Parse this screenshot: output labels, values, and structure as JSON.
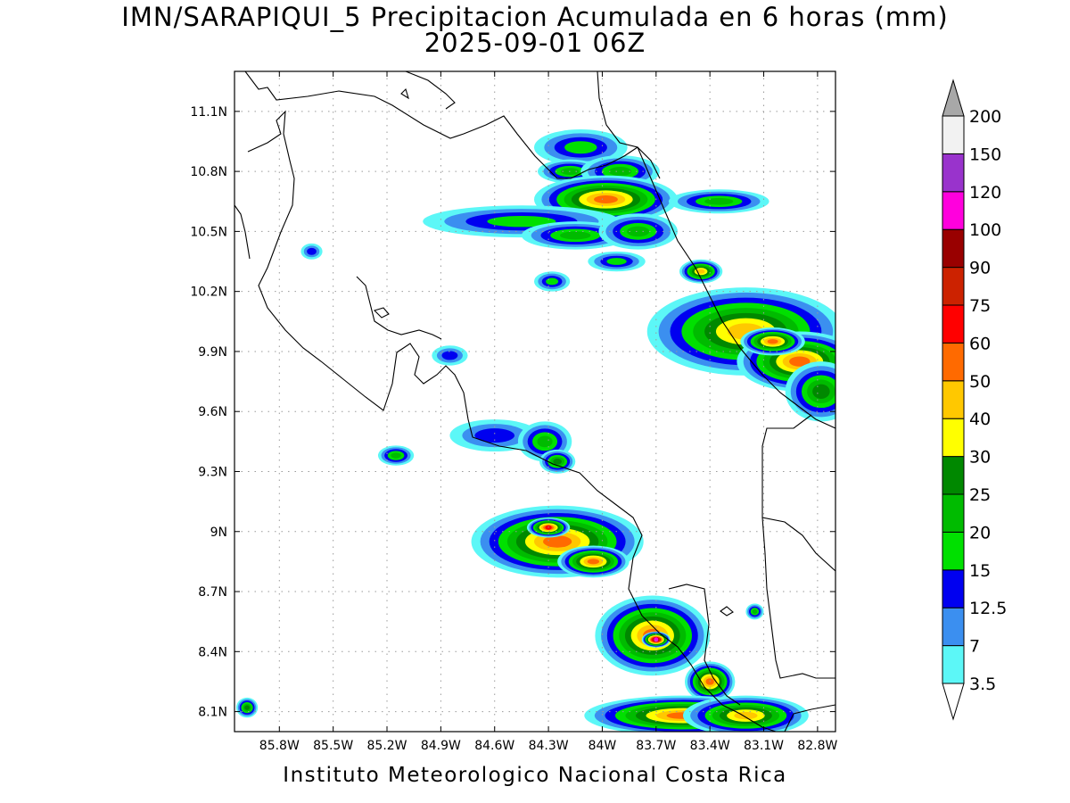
{
  "title": {
    "line1": "IMN/SARAPIQUI_5 Precipitacion Acumulada en 6 horas (mm)",
    "line2": "2025-09-01 06Z"
  },
  "footer": "Instituto Meteorologico Nacional Costa Rica",
  "map": {
    "lon_range": [
      -86.05,
      -82.7
    ],
    "lat_range": [
      8.0,
      11.3
    ],
    "lat_labels": [
      {
        "value": 11.1,
        "text": "11.1N"
      },
      {
        "value": 10.8,
        "text": "10.8N"
      },
      {
        "value": 10.5,
        "text": "10.5N"
      },
      {
        "value": 10.2,
        "text": "10.2N"
      },
      {
        "value": 9.9,
        "text": "9.9N"
      },
      {
        "value": 9.6,
        "text": "9.6N"
      },
      {
        "value": 9.3,
        "text": "9.3N"
      },
      {
        "value": 9.0,
        "text": "9N"
      },
      {
        "value": 8.7,
        "text": "8.7N"
      },
      {
        "value": 8.4,
        "text": "8.4N"
      },
      {
        "value": 8.1,
        "text": "8.1N"
      }
    ],
    "lon_labels": [
      {
        "value": -85.8,
        "text": "85.8W"
      },
      {
        "value": -85.5,
        "text": "85.5W"
      },
      {
        "value": -85.2,
        "text": "85.2W"
      },
      {
        "value": -84.9,
        "text": "84.9W"
      },
      {
        "value": -84.6,
        "text": "84.6W"
      },
      {
        "value": -84.3,
        "text": "84.3W"
      },
      {
        "value": -84.0,
        "text": "84W"
      },
      {
        "value": -83.7,
        "text": "83.7W"
      },
      {
        "value": -83.4,
        "text": "83.4W"
      },
      {
        "value": -83.1,
        "text": "83.1W"
      },
      {
        "value": -82.8,
        "text": "82.8W"
      }
    ],
    "gridlines": true
  },
  "colorbar": {
    "labels": [
      "3.5",
      "7",
      "12.5",
      "15",
      "20",
      "25",
      "30",
      "40",
      "50",
      "60",
      "75",
      "90",
      "100",
      "120",
      "150",
      "200"
    ],
    "colors": [
      "#5cf7f7",
      "#3b8ff0",
      "#0000f0",
      "#00e000",
      "#00bb00",
      "#008800",
      "#ffff00",
      "#ffc800",
      "#ff6a00",
      "#ff0000",
      "#cc2200",
      "#990000",
      "#ff00dd",
      "#9933cc",
      "#f2f2f2",
      "#a8a8a8"
    ]
  },
  "precip_cells": [
    {
      "lon": -84.12,
      "lat": 10.92,
      "rx": 0.26,
      "ry": 0.09,
      "level": 3
    },
    {
      "lon": -84.18,
      "lat": 10.8,
      "rx": 0.18,
      "ry": 0.06,
      "level": 4
    },
    {
      "lon": -83.9,
      "lat": 10.8,
      "rx": 0.22,
      "ry": 0.08,
      "level": 4
    },
    {
      "lon": -83.98,
      "lat": 10.66,
      "rx": 0.4,
      "ry": 0.12,
      "level": 8
    },
    {
      "lon": -84.45,
      "lat": 10.55,
      "rx": 0.55,
      "ry": 0.08,
      "level": 3
    },
    {
      "lon": -84.15,
      "lat": 10.48,
      "rx": 0.3,
      "ry": 0.07,
      "level": 4
    },
    {
      "lon": -83.8,
      "lat": 10.5,
      "rx": 0.22,
      "ry": 0.09,
      "level": 4
    },
    {
      "lon": -83.92,
      "lat": 10.35,
      "rx": 0.16,
      "ry": 0.05,
      "level": 3
    },
    {
      "lon": -83.35,
      "lat": 10.65,
      "rx": 0.28,
      "ry": 0.06,
      "level": 4
    },
    {
      "lon": -84.28,
      "lat": 10.25,
      "rx": 0.1,
      "ry": 0.05,
      "level": 3
    },
    {
      "lon": -85.62,
      "lat": 10.4,
      "rx": 0.06,
      "ry": 0.04,
      "level": 2
    },
    {
      "lon": -83.45,
      "lat": 10.3,
      "rx": 0.12,
      "ry": 0.06,
      "level": 7
    },
    {
      "lon": -83.2,
      "lat": 10.0,
      "rx": 0.55,
      "ry": 0.22,
      "level": 7
    },
    {
      "lon": -82.9,
      "lat": 9.85,
      "rx": 0.35,
      "ry": 0.15,
      "level": 8
    },
    {
      "lon": -83.05,
      "lat": 9.95,
      "rx": 0.18,
      "ry": 0.07,
      "level": 8
    },
    {
      "lon": -82.78,
      "lat": 9.7,
      "rx": 0.2,
      "ry": 0.15,
      "level": 5
    },
    {
      "lon": -84.85,
      "lat": 9.88,
      "rx": 0.1,
      "ry": 0.05,
      "level": 2
    },
    {
      "lon": -84.6,
      "lat": 9.48,
      "rx": 0.25,
      "ry": 0.08,
      "level": 2
    },
    {
      "lon": -84.32,
      "lat": 9.45,
      "rx": 0.15,
      "ry": 0.1,
      "level": 4
    },
    {
      "lon": -84.25,
      "lat": 9.35,
      "rx": 0.1,
      "ry": 0.06,
      "level": 5
    },
    {
      "lon": -85.15,
      "lat": 9.38,
      "rx": 0.1,
      "ry": 0.05,
      "level": 4
    },
    {
      "lon": -84.25,
      "lat": 8.95,
      "rx": 0.48,
      "ry": 0.18,
      "level": 8
    },
    {
      "lon": -84.05,
      "lat": 8.85,
      "rx": 0.2,
      "ry": 0.08,
      "level": 8
    },
    {
      "lon": -84.3,
      "lat": 9.02,
      "rx": 0.12,
      "ry": 0.05,
      "level": 9
    },
    {
      "lon": -83.72,
      "lat": 8.48,
      "rx": 0.32,
      "ry": 0.2,
      "level": 8
    },
    {
      "lon": -83.7,
      "lat": 8.46,
      "rx": 0.08,
      "ry": 0.04,
      "level": 12
    },
    {
      "lon": -83.4,
      "lat": 8.25,
      "rx": 0.14,
      "ry": 0.1,
      "level": 8
    },
    {
      "lon": -83.55,
      "lat": 8.08,
      "rx": 0.55,
      "ry": 0.1,
      "level": 8
    },
    {
      "lon": -83.2,
      "lat": 8.08,
      "rx": 0.35,
      "ry": 0.1,
      "level": 7
    },
    {
      "lon": -85.98,
      "lat": 8.12,
      "rx": 0.06,
      "ry": 0.05,
      "level": 5
    },
    {
      "lon": -83.15,
      "lat": 8.6,
      "rx": 0.05,
      "ry": 0.04,
      "level": 4
    }
  ]
}
